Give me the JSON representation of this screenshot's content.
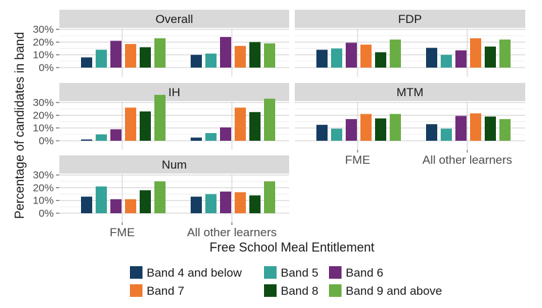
{
  "chart_data": {
    "type": "bar",
    "facets": [
      "Overall",
      "FDP",
      "IH",
      "MTM",
      "Num"
    ],
    "categories": [
      "FME",
      "All other learners"
    ],
    "xlabel": "Free School Meal Entitlement",
    "ylabel": "Percentage of candidates in band",
    "y_ticks": [
      "0%",
      "10%",
      "20%",
      "30%"
    ],
    "ylim": [
      0,
      0.35
    ],
    "grid": true,
    "legend_position": "bottom",
    "series": [
      {
        "name": "Band 4 and below",
        "color": "#153d62"
      },
      {
        "name": "Band 5",
        "color": "#35a39a"
      },
      {
        "name": "Band 6",
        "color": "#6f2c7a"
      },
      {
        "name": "Band 7",
        "color": "#ee7a30"
      },
      {
        "name": "Band 8",
        "color": "#0e4c14"
      },
      {
        "name": "Band 9 and above",
        "color": "#6aad45"
      }
    ],
    "panels": [
      {
        "title": "Overall",
        "values": {
          "FME": [
            0.08,
            0.14,
            0.21,
            0.185,
            0.16,
            0.23
          ],
          "All other learners": [
            0.1,
            0.11,
            0.24,
            0.17,
            0.2,
            0.19
          ]
        }
      },
      {
        "title": "FDP",
        "values": {
          "FME": [
            0.14,
            0.15,
            0.195,
            0.18,
            0.12,
            0.22
          ],
          "All other learners": [
            0.155,
            0.1,
            0.135,
            0.23,
            0.165,
            0.22
          ]
        }
      },
      {
        "title": "IH",
        "values": {
          "FME": [
            0.01,
            0.05,
            0.09,
            0.26,
            0.23,
            0.36
          ],
          "All other learners": [
            0.025,
            0.06,
            0.105,
            0.26,
            0.225,
            0.33
          ]
        }
      },
      {
        "title": "MTM",
        "values": {
          "FME": [
            0.125,
            0.095,
            0.17,
            0.21,
            0.175,
            0.21
          ],
          "All other learners": [
            0.13,
            0.095,
            0.195,
            0.215,
            0.19,
            0.17
          ]
        }
      },
      {
        "title": "Num",
        "values": {
          "FME": [
            0.13,
            0.21,
            0.11,
            0.11,
            0.18,
            0.25
          ],
          "All other learners": [
            0.13,
            0.15,
            0.17,
            0.165,
            0.14,
            0.25
          ]
        }
      }
    ]
  }
}
